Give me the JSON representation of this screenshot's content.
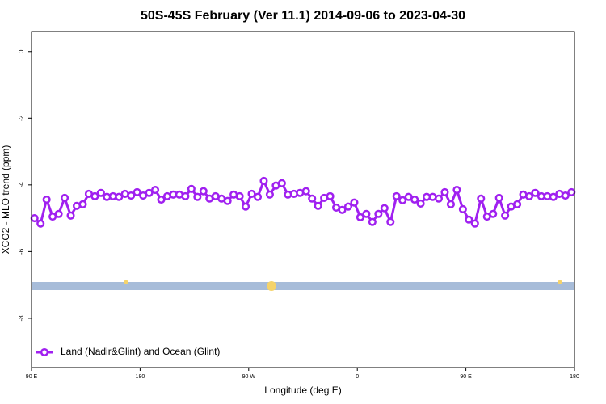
{
  "chart_data": {
    "type": "line",
    "title": "50S-45S February (Ver 11.1)   2014-09-06 to 2023-04-30",
    "x_label": "Longitude (deg E)",
    "y_label": "XCO2 - MLO trend (ppm)",
    "xlim": [
      90,
      540
    ],
    "ylim": [
      -9.48,
      0.6
    ],
    "xticks": [
      {
        "value": 90,
        "label": "90 E"
      },
      {
        "value": 180,
        "label": "180"
      },
      {
        "value": 270,
        "label": "90 W"
      },
      {
        "value": 360,
        "label": "0"
      },
      {
        "value": 450,
        "label": "90 E"
      },
      {
        "value": 540,
        "label": "180"
      }
    ],
    "yticks": [
      0,
      -2,
      -4,
      -6,
      -8
    ],
    "legend": "bottom-left",
    "x": [
      92.5,
      97.5,
      102.5,
      107.5,
      112.5,
      117.5,
      122.5,
      127.5,
      132.5,
      137.5,
      142.5,
      147.5,
      152.5,
      157.5,
      162.5,
      167.5,
      172.5,
      177.5,
      182.5,
      187.5,
      192.5,
      197.5,
      202.5,
      207.5,
      212.5,
      217.5,
      222.5,
      227.5,
      232.5,
      237.5,
      242.5,
      247.5,
      252.5,
      257.5,
      262.5,
      267.5,
      272.5,
      277.5,
      282.5,
      287.5,
      292.5,
      297.5,
      302.5,
      307.5,
      312.5,
      317.5,
      322.5,
      327.5,
      332.5,
      337.5,
      342.5,
      347.5,
      352.5,
      357.5,
      362.5,
      367.5,
      372.5,
      377.5,
      382.5,
      387.5,
      392.5,
      397.5,
      402.5,
      407.5,
      412.5,
      417.5,
      422.5,
      427.5,
      432.5,
      437.5,
      442.5,
      447.5,
      452.5,
      457.5,
      462.5,
      467.5,
      472.5,
      477.5,
      482.5,
      487.5,
      492.5,
      497.5,
      502.5,
      507.5,
      512.5,
      517.5,
      522.5,
      527.5,
      532.5,
      537.5
    ],
    "series": [
      {
        "name": "Land (Nadir&Glint) and Ocean (Glint)",
        "color": "#a020f0",
        "values": [
          -5.0,
          -5.16,
          -4.44,
          -4.95,
          -4.87,
          -4.39,
          -4.92,
          -4.63,
          -4.58,
          -4.27,
          -4.34,
          -4.24,
          -4.36,
          -4.34,
          -4.36,
          -4.27,
          -4.32,
          -4.22,
          -4.32,
          -4.24,
          -4.15,
          -4.44,
          -4.34,
          -4.29,
          -4.29,
          -4.34,
          -4.12,
          -4.36,
          -4.19,
          -4.41,
          -4.34,
          -4.41,
          -4.48,
          -4.29,
          -4.34,
          -4.65,
          -4.27,
          -4.36,
          -3.88,
          -4.29,
          -4.02,
          -3.95,
          -4.29,
          -4.27,
          -4.24,
          -4.19,
          -4.41,
          -4.63,
          -4.39,
          -4.34,
          -4.68,
          -4.75,
          -4.65,
          -4.53,
          -4.97,
          -4.87,
          -5.11,
          -4.87,
          -4.7,
          -5.11,
          -4.34,
          -4.46,
          -4.36,
          -4.44,
          -4.56,
          -4.36,
          -4.36,
          -4.41,
          -4.22,
          -4.58,
          -4.15,
          -4.73,
          -5.04,
          -5.16,
          -4.41,
          -4.95,
          -4.87,
          -4.39,
          -4.92,
          -4.65,
          -4.58,
          -4.29,
          -4.34,
          -4.24,
          -4.34,
          -4.34,
          -4.36,
          -4.27,
          -4.32,
          -4.22
        ]
      }
    ]
  }
}
